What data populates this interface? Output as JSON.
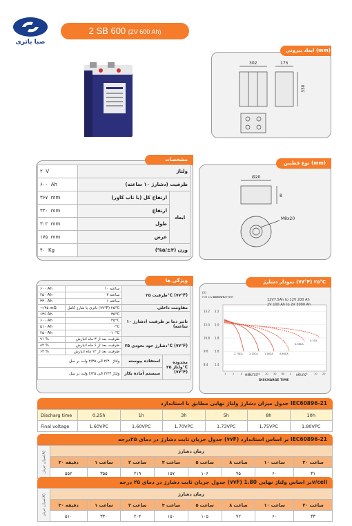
{
  "brand": {
    "logo_text": "صبا باتری",
    "accent": "#f47c2a",
    "logo_color": "#1a3e8c"
  },
  "model": {
    "name": "2 SB 600",
    "sub": "(2V 600 Ah)"
  },
  "sections": {
    "dimensions": "ابعاد بیرونی (mm)",
    "terminal": "نوع قطبین (mm)",
    "specs": "مشخصات",
    "discharge_chart": "نمودار دشارژ (۷۷°F) ۲۵°C",
    "features": "ویژگی ها"
  },
  "drawing": {
    "front_width": "302",
    "side_width": "175",
    "height": "330",
    "terminal_d": "Ø20",
    "terminal_h": "8",
    "thread": "M8x20"
  },
  "specs": [
    {
      "label": "ولتاژ",
      "value": "۲",
      "unit": "V"
    },
    {
      "label": "ظرفیت (دشارژ ۱۰ ساعته)",
      "value": "۶۰۰",
      "unit": "Ah"
    },
    {
      "label": "ارتفاع کل (با تاپ کاور)",
      "value": "۳۶۷",
      "unit": "mm"
    },
    {
      "label": "ارتفاع",
      "value": "۳۳۰",
      "unit": "mm"
    },
    {
      "label": "طول",
      "value": "۳۰۲",
      "unit": "mm"
    },
    {
      "label": "عرض",
      "value": "۱۷۵",
      "unit": "mm"
    },
    {
      "label": "وزن (۴±/۵%)",
      "value": "۴۰",
      "unit": "Kg"
    }
  ],
  "specs_group": "ابعاد",
  "features": {
    "capacity": {
      "label": "ظرفیت ۲۵°C (۷۷°F)",
      "rows": [
        {
          "v": "۶۰۰",
          "u": "Ah",
          "d": "۱۰ ساعته"
        },
        {
          "v": "۴۵۰",
          "u": "Ah",
          "d": "۳ ساعته"
        },
        {
          "v": "۳۳۰",
          "u": "Ah",
          "d": "۱ ساعته"
        }
      ]
    },
    "resistance": {
      "label": "مقاومت داخلی",
      "v": "~/۴۵",
      "u": "mΩ",
      "d": "باتری با شارژ کامل (۷۷°F) ۲۵°C"
    },
    "temp": {
      "label": "تاثیر دما بر ظرفیت (دشارژ ۱۰ ساعته)",
      "rows": [
        {
          "v": "۶۳۶",
          "u": "Ah",
          "d": "۳۵°C"
        },
        {
          "v": "۶۰۰",
          "u": "Ah",
          "d": "۲۵°C"
        },
        {
          "v": "۵۱۰",
          "u": "Ah",
          "d": "۰°C"
        },
        {
          "v": "۴۵۰",
          "u": "Ah",
          "d": "-۱۰°C"
        }
      ]
    },
    "self_discharge": {
      "label": "دشارژ خود بخودی ۲۵°C (۷۷°F)",
      "rows": [
        {
          "v": "۹۱",
          "u": "%",
          "d": "ظرفیت بعد از ۳ ماه انبارش"
        },
        {
          "v": "۸۲",
          "u": "%",
          "d": "ظرفیت بعد از ۶ ماه انبارش"
        },
        {
          "v": "۶۴",
          "u": "%",
          "d": "ظرفیت بعد از ۱۲ ماه انبارش"
        }
      ]
    },
    "voltage": {
      "label": "محدوده ولتاژ ۲۵°C (۷۷°F)",
      "rows": [
        {
          "use": "استفاده پیوسته",
          "d": "ولتاژ ۲/۳۰ الی ۲/۳۵ ولت بر سل"
        },
        {
          "use": "سیستم آماده بکار",
          "d": "ولتاژ ۲/۲۳ الی ۲/۲۵ ولت بر سل"
        }
      ]
    }
  },
  "chart_data": {
    "type": "line",
    "title": "",
    "xlabel": "DISCHARGE TIME",
    "ylabel": "(V)",
    "y_axis_labels": [
      "FOR 12v BATTERY",
      "FOR 2v BATTERY"
    ],
    "y_ticks_12v": [
      "13.2",
      "12.0",
      "10.8",
      "9.6",
      "8.4"
    ],
    "y_ticks_2v": [
      "2.2",
      "2.0",
      "1.8",
      "1.6",
      "1.4"
    ],
    "x_ticks": [
      "1",
      "2",
      "4",
      "6",
      "10",
      "20",
      "30",
      "60",
      "2",
      "3",
      "5",
      "10",
      "20"
    ],
    "x_units": [
      "MINUTES",
      "HOURS"
    ],
    "legend_text": [
      "12V7.5Ah to 12V 200 Ah",
      "2V 100 Ah to 2V 3000 Ah"
    ],
    "series": [
      {
        "name": "2.70CA",
        "end_v": 1.6
      },
      {
        "name": "2.10CA",
        "end_v": 1.6
      },
      {
        "name": "1.16CA",
        "end_v": 1.6
      },
      {
        "name": "0.60CA",
        "end_v": 1.6
      },
      {
        "name": "0.36CA",
        "end_v": 1.75
      },
      {
        "name": "0.1CA",
        "end_v": 1.8
      }
    ]
  },
  "table1": {
    "title": "جدول میزان دشارژ ولتاژ نهایی مطابق با استاندارد IEC60896-21",
    "row1_label": "Discharg time",
    "row2_label": "Final voltage",
    "times": [
      "0.25h",
      "1h",
      "3h",
      "5h",
      "8h",
      "10h"
    ],
    "voltages": [
      "1.60VPC",
      "1.60VPC",
      "1.70VPC",
      "1.73VPC",
      "1.75VPC",
      "1.80VPC"
    ]
  },
  "table2": {
    "title": "جدول جریان ثابت دشارژ در دمای ۲۵درجه (۷۷F) بر اساس استاندارد IEC60896-21",
    "sub": "زمان دشارژ",
    "side": "میزان جریان(A)",
    "headers": [
      "۳۰ دقیقه",
      "۱ ساعت",
      "۲ ساعت",
      "۳ ساعت",
      "۵ ساعت",
      "۸ ساعت",
      "۱۰ ساعت",
      "۲۰ ساعت"
    ],
    "values": [
      "۵۵۲",
      "۳۵۵",
      "۲۱۹",
      "۱۵۷",
      "۱۰۶",
      "۷۵",
      "۶۰",
      "۳۱"
    ]
  },
  "table3": {
    "title": "جدول جریان ثابت دشارژ در دمای ۲۵ درجه (۷۷F) بر اساس ولتاژ نهایی 1.80v/cell",
    "sub": "زمان دشارژ",
    "side": "میزان جریان(A)",
    "headers": [
      "۳۰ دقیقه",
      "۱ ساعت",
      "۲ ساعت",
      "۳ ساعت",
      "۵ ساعت",
      "۸ ساعت",
      "۱۰ ساعت",
      "۲۰ ساعت"
    ],
    "values": [
      "۵۱۰",
      "۳۳۰",
      "۲۰۴",
      "۱۵۰",
      "۱۰۵",
      "۷۲",
      "۶۰",
      "۳۳"
    ]
  }
}
